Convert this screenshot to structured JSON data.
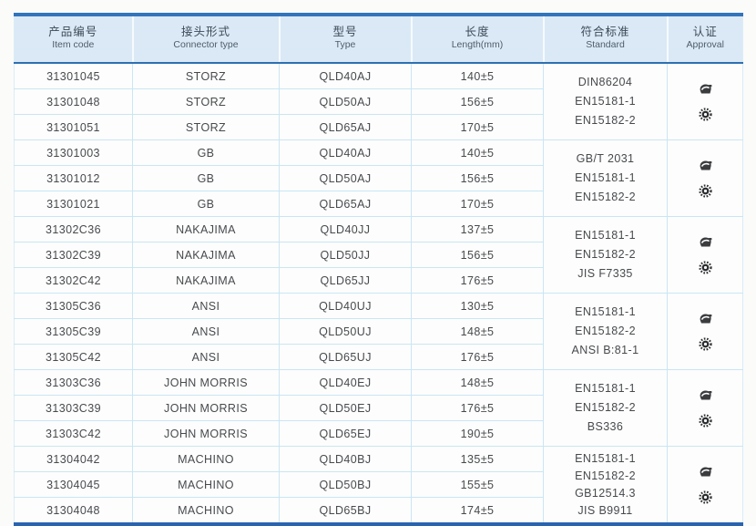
{
  "colors": {
    "header_bg": "#dbe9f6",
    "top_border": "#3274bc",
    "header_rule": "#2d6fb2",
    "row_line": "#c9e6f3",
    "bottom_border": "#2a64ae",
    "text": "#474a4d"
  },
  "table": {
    "header": {
      "columns": [
        {
          "zh": "产品编号",
          "en": "Item code"
        },
        {
          "zh": "接头形式",
          "en": "Connector type"
        },
        {
          "zh": "型号",
          "en": "Type"
        },
        {
          "zh": "长度",
          "en": "Length(mm)"
        },
        {
          "zh": "符合标准",
          "en": "Standard"
        },
        {
          "zh": "认证",
          "en": "Approval"
        }
      ]
    },
    "approval_icons": [
      {
        "name": "certificate-stamp-icon"
      },
      {
        "name": "gear-seal-icon"
      }
    ],
    "groups": [
      {
        "rows": [
          {
            "item_code": "31301045",
            "connector_type": "STORZ",
            "type": "QLD40AJ",
            "length": "140±5"
          },
          {
            "item_code": "31301048",
            "connector_type": "STORZ",
            "type": "QLD50AJ",
            "length": "156±5"
          },
          {
            "item_code": "31301051",
            "connector_type": "STORZ",
            "type": "QLD65AJ",
            "length": "170±5"
          }
        ],
        "standards": [
          "DIN86204",
          "EN15181-1",
          "EN15182-2"
        ]
      },
      {
        "rows": [
          {
            "item_code": "31301003",
            "connector_type": "GB",
            "type": "QLD40AJ",
            "length": "140±5"
          },
          {
            "item_code": "31301012",
            "connector_type": "GB",
            "type": "QLD50AJ",
            "length": "156±5"
          },
          {
            "item_code": "31301021",
            "connector_type": "GB",
            "type": "QLD65AJ",
            "length": "170±5"
          }
        ],
        "standards": [
          "GB/T 2031",
          "EN15181-1",
          "EN15182-2"
        ]
      },
      {
        "rows": [
          {
            "item_code": "31302C36",
            "connector_type": "NAKAJIMA",
            "type": "QLD40JJ",
            "length": "137±5"
          },
          {
            "item_code": "31302C39",
            "connector_type": "NAKAJIMA",
            "type": "QLD50JJ",
            "length": "156±5"
          },
          {
            "item_code": "31302C42",
            "connector_type": "NAKAJIMA",
            "type": "QLD65JJ",
            "length": "176±5"
          }
        ],
        "standards": [
          "EN15181-1",
          "EN15182-2",
          "JIS F7335"
        ]
      },
      {
        "rows": [
          {
            "item_code": "31305C36",
            "connector_type": "ANSI",
            "type": "QLD40UJ",
            "length": "130±5"
          },
          {
            "item_code": "31305C39",
            "connector_type": "ANSI",
            "type": "QLD50UJ",
            "length": "148±5"
          },
          {
            "item_code": "31305C42",
            "connector_type": "ANSI",
            "type": "QLD65UJ",
            "length": "176±5"
          }
        ],
        "standards": [
          "EN15181-1",
          "EN15182-2",
          "ANSI B:81-1"
        ]
      },
      {
        "rows": [
          {
            "item_code": "31303C36",
            "connector_type": "JOHN MORRIS",
            "type": "QLD40EJ",
            "length": "148±5"
          },
          {
            "item_code": "31303C39",
            "connector_type": "JOHN MORRIS",
            "type": "QLD50EJ",
            "length": "176±5"
          },
          {
            "item_code": "31303C42",
            "connector_type": "JOHN MORRIS",
            "type": "QLD65EJ",
            "length": "190±5"
          }
        ],
        "standards": [
          "EN15181-1",
          "EN15182-2",
          "BS336"
        ]
      },
      {
        "rows": [
          {
            "item_code": "31304042",
            "connector_type": "MACHINO",
            "type": "QLD40BJ",
            "length": "135±5"
          },
          {
            "item_code": "31304045",
            "connector_type": "MACHINO",
            "type": "QLD50BJ",
            "length": "155±5"
          },
          {
            "item_code": "31304048",
            "connector_type": "MACHINO",
            "type": "QLD65BJ",
            "length": "174±5"
          }
        ],
        "standards": [
          "EN15181-1",
          "EN15182-2",
          "GB12514.3",
          "JIS B9911"
        ]
      }
    ]
  }
}
